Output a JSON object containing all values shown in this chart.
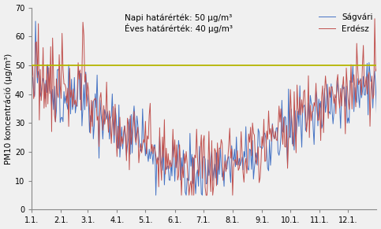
{
  "title": "",
  "ylabel": "PM10 koncentráció (μg/m³)",
  "ylim": [
    0,
    70
  ],
  "yticks": [
    0,
    10,
    20,
    30,
    40,
    50,
    60,
    70
  ],
  "xtick_labels": [
    "1.1.",
    "2.1.",
    "3.1.",
    "4.1.",
    "5.1.",
    "6.1.",
    "7.1.",
    "8.1.",
    "9.1.",
    "10.1.",
    "11.1.",
    "12.1."
  ],
  "hline_value": 50,
  "hline_color": "#b5b500",
  "sagvari_color": "#4472c4",
  "erdész_color": "#c0504d",
  "annotation_text": "Napi határérték: 50 μg/m³\nÉves határérték: 40 μg/m³",
  "legend_labels": [
    "Ságvári",
    "Erdész"
  ],
  "figsize": [
    4.83,
    2.91
  ],
  "dpi": 100,
  "bg_color": "#f0f0f0"
}
